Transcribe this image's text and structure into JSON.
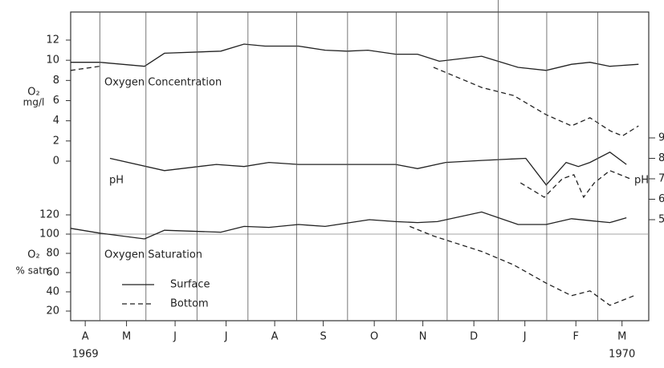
{
  "chart_data": [
    {
      "type": "line",
      "annotation": "Oxygen Concentration",
      "ylabel": "O₂",
      "ylabel_unit": "mg/l",
      "xlim": [
        0,
        11.9
      ],
      "ylim": [
        0,
        12
      ],
      "yticks": [
        0,
        2,
        4,
        6,
        8,
        10,
        12
      ],
      "series": [
        {
          "name": "Surface",
          "color": "#222",
          "dash": false,
          "x": [
            0,
            0.6,
            1.52,
            1.93,
            3.09,
            3.57,
            4.0,
            4.69,
            5.24,
            5.69,
            6.12,
            6.69,
            7.14,
            7.59,
            8.46,
            9.21,
            9.79,
            10.31,
            10.69,
            11.1,
            11.69
          ],
          "values": [
            9.8,
            9.8,
            9.4,
            10.7,
            10.9,
            11.6,
            11.4,
            11.4,
            11.0,
            10.9,
            11.0,
            10.6,
            10.6,
            9.9,
            10.4,
            9.3,
            9.0,
            9.6,
            9.8,
            9.4,
            9.6
          ]
        },
        {
          "name": "Bottom",
          "color": "#222",
          "dash": true,
          "x": [
            0,
            0.6,
            6.94,
            7.47,
            8.46,
            9.12,
            9.79,
            10.31,
            10.69,
            11.11,
            11.36,
            11.69
          ],
          "values": [
            9.0,
            9.4,
            null,
            9.3,
            7.3,
            6.5,
            4.6,
            3.5,
            4.3,
            3.0,
            2.5,
            3.5
          ]
        }
      ]
    },
    {
      "type": "line",
      "annotation": "pH",
      "ylabel": "pH",
      "axis_side": "right",
      "xlim": [
        0,
        11.9
      ],
      "ylim": [
        5,
        9
      ],
      "yticks": [
        5,
        6,
        7,
        8,
        9
      ],
      "series": [
        {
          "name": "Surface",
          "color": "#222",
          "dash": false,
          "x": [
            0.81,
            1.93,
            3.0,
            3.57,
            4.08,
            4.69,
            5.65,
            6.69,
            7.14,
            7.72,
            8.46,
            9.37,
            9.79,
            10.2,
            10.45,
            10.69,
            11.1,
            11.44
          ],
          "values": [
            8.0,
            7.4,
            7.7,
            7.6,
            7.8,
            7.7,
            7.7,
            7.7,
            7.5,
            7.8,
            7.9,
            8.0,
            6.7,
            7.8,
            7.6,
            7.8,
            8.3,
            7.7
          ]
        },
        {
          "name": "Bottom",
          "color": "#222",
          "dash": true,
          "x": [
            9.26,
            9.75,
            10.12,
            10.36,
            10.56,
            10.78,
            11.1,
            11.52
          ],
          "values": [
            6.8,
            6.1,
            7.0,
            7.2,
            6.1,
            6.8,
            7.4,
            7.0
          ]
        }
      ]
    },
    {
      "type": "line",
      "annotation": "Oxygen Saturation",
      "ylabel": "O₂",
      "ylabel_unit": "% satn.",
      "xlim": [
        0,
        11.9
      ],
      "ylim": [
        20,
        120
      ],
      "yticks": [
        20,
        40,
        60,
        80,
        100,
        120
      ],
      "reference_line": 100,
      "xticks": [
        {
          "value": 0.3,
          "label": "A"
        },
        {
          "value": 1.15,
          "label": "M"
        },
        {
          "value": 2.15,
          "label": "J"
        },
        {
          "value": 3.2,
          "label": "J"
        },
        {
          "value": 4.2,
          "label": "A"
        },
        {
          "value": 5.2,
          "label": "S"
        },
        {
          "value": 6.25,
          "label": "O"
        },
        {
          "value": 7.25,
          "label": "N"
        },
        {
          "value": 8.3,
          "label": "D"
        },
        {
          "value": 9.35,
          "label": "J"
        },
        {
          "value": 10.4,
          "label": "F"
        },
        {
          "value": 11.35,
          "label": "M"
        }
      ],
      "xgrid": [
        0.6,
        1.55,
        2.6,
        3.65,
        4.65,
        5.7,
        6.7,
        7.75,
        8.8,
        9.8,
        10.85
      ],
      "year_labels": [
        {
          "value": 0.3,
          "label": "1969"
        },
        {
          "value": 11.35,
          "label": "1970"
        }
      ],
      "legend": "lower-left",
      "series": [
        {
          "name": "Surface",
          "color": "#222",
          "dash": false,
          "x": [
            0,
            0.6,
            1.52,
            1.93,
            3.09,
            3.57,
            4.08,
            4.69,
            5.24,
            6.15,
            6.69,
            7.14,
            7.55,
            8.46,
            9.21,
            9.79,
            10.31,
            10.69,
            11.1,
            11.44
          ],
          "values": [
            106,
            101,
            95,
            104,
            102,
            108,
            107,
            110,
            108,
            115,
            113,
            112,
            113,
            123,
            110,
            110,
            116,
            114,
            112,
            117
          ]
        },
        {
          "name": "Bottom",
          "color": "#222",
          "dash": true,
          "x": [
            6.98,
            7.47,
            8.46,
            9.12,
            9.79,
            10.31,
            10.69,
            11.1,
            11.6
          ],
          "values": [
            108,
            98,
            82,
            68,
            49,
            36,
            41,
            26,
            36
          ]
        }
      ]
    }
  ]
}
